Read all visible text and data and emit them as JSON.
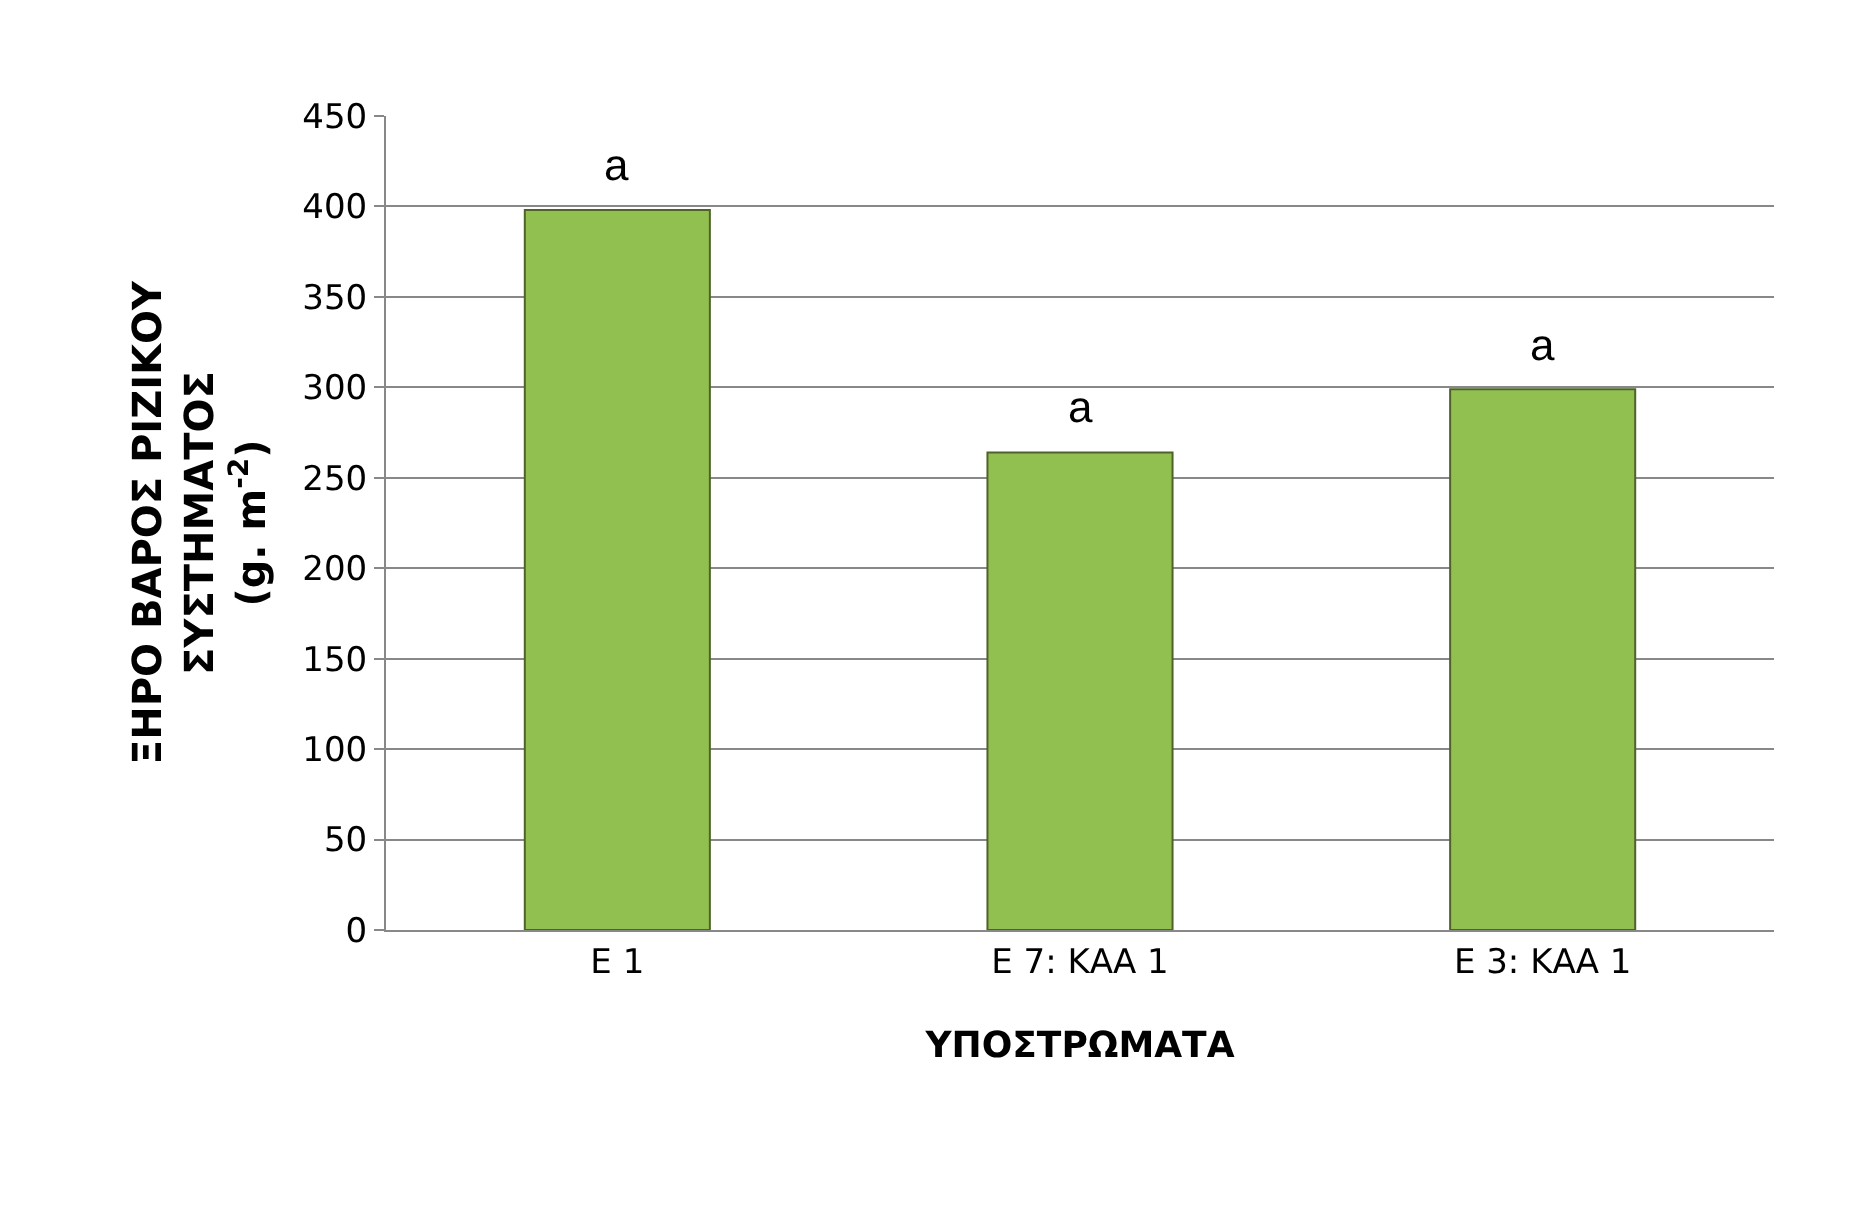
{
  "chart_data": {
    "type": "bar",
    "xlabel": "ΥΠΟΣΤΡΩΜΑΤΑ",
    "ylabel": "ΞΗΡΟ ΒΑΡΟΣ ΡΙΖΙΚΟΥ\nΣΥΣΤΗΜΑΤΟΣ\n(g. m$^{-2}$)",
    "categories": [
      "E 1",
      "E 7: ΚΑΑ 1",
      "E 3: ΚΑΑ 1"
    ],
    "values": [
      398,
      264,
      299
    ],
    "color": "#92c050",
    "ylim": [
      0,
      450
    ],
    "yticks": [
      0,
      50,
      100,
      150,
      200,
      250,
      300,
      350,
      400,
      450
    ],
    "grid": "y",
    "annotations": [
      {
        "text": "a",
        "x": "E 1",
        "y": 398
      },
      {
        "text": "a",
        "x": "E 7: ΚΑΑ 1",
        "y": 264
      },
      {
        "text": "a",
        "x": "E 3: ΚΑΑ 1",
        "y": 299
      }
    ]
  }
}
